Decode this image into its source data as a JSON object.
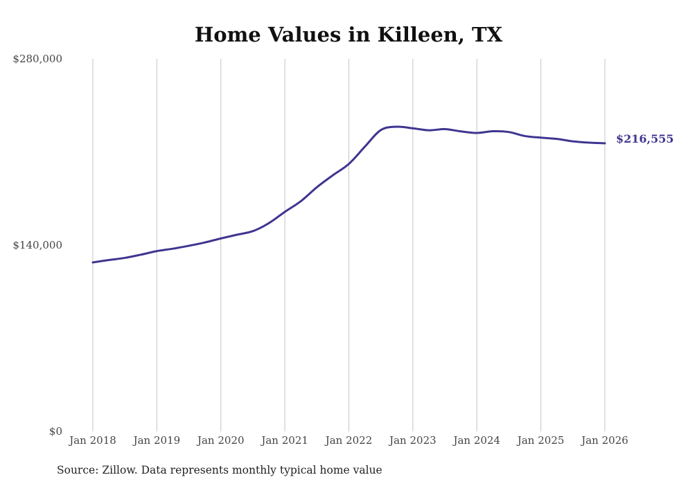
{
  "chart_data": {
    "type": "line",
    "title": "Home Values in Killeen, TX",
    "xlabel": "",
    "ylabel": "",
    "source": "Source: Zillow. Data represents monthly typical home value",
    "ylim": [
      0,
      280000
    ],
    "y_ticks": [
      {
        "value": 0,
        "label": "$0"
      },
      {
        "value": 140000,
        "label": "$140,000"
      },
      {
        "value": 280000,
        "label": "$280,000"
      }
    ],
    "x_range": [
      2018.0,
      2026.0
    ],
    "x_ticks": [
      {
        "value": 2018,
        "label": "Jan 2018"
      },
      {
        "value": 2019,
        "label": "Jan 2019"
      },
      {
        "value": 2020,
        "label": "Jan 2020"
      },
      {
        "value": 2021,
        "label": "Jan 2021"
      },
      {
        "value": 2022,
        "label": "Jan 2022"
      },
      {
        "value": 2023,
        "label": "Jan 2023"
      },
      {
        "value": 2024,
        "label": "Jan 2024"
      },
      {
        "value": 2025,
        "label": "Jan 2025"
      },
      {
        "value": 2026,
        "label": "Jan 2026"
      }
    ],
    "grid": "vertical",
    "series": [
      {
        "name": "Typical home value",
        "color": "#3f3590",
        "end_label": "$216,555",
        "points": [
          [
            2018.0,
            127000
          ],
          [
            2018.25,
            128800
          ],
          [
            2018.5,
            130400
          ],
          [
            2018.75,
            132800
          ],
          [
            2019.0,
            135500
          ],
          [
            2019.25,
            137300
          ],
          [
            2019.5,
            139500
          ],
          [
            2019.75,
            142000
          ],
          [
            2020.0,
            145000
          ],
          [
            2020.25,
            147800
          ],
          [
            2020.5,
            150500
          ],
          [
            2020.75,
            156500
          ],
          [
            2021.0,
            165000
          ],
          [
            2021.25,
            173000
          ],
          [
            2021.5,
            183500
          ],
          [
            2021.75,
            192500
          ],
          [
            2022.0,
            201000
          ],
          [
            2022.25,
            214000
          ],
          [
            2022.5,
            226500
          ],
          [
            2022.75,
            229000
          ],
          [
            2023.0,
            227800
          ],
          [
            2023.25,
            226300
          ],
          [
            2023.5,
            227200
          ],
          [
            2023.75,
            225500
          ],
          [
            2024.0,
            224300
          ],
          [
            2024.25,
            225600
          ],
          [
            2024.5,
            225000
          ],
          [
            2024.75,
            222000
          ],
          [
            2025.0,
            220800
          ],
          [
            2025.25,
            219800
          ],
          [
            2025.5,
            218000
          ],
          [
            2025.75,
            217000
          ],
          [
            2026.0,
            216555
          ]
        ]
      }
    ]
  }
}
